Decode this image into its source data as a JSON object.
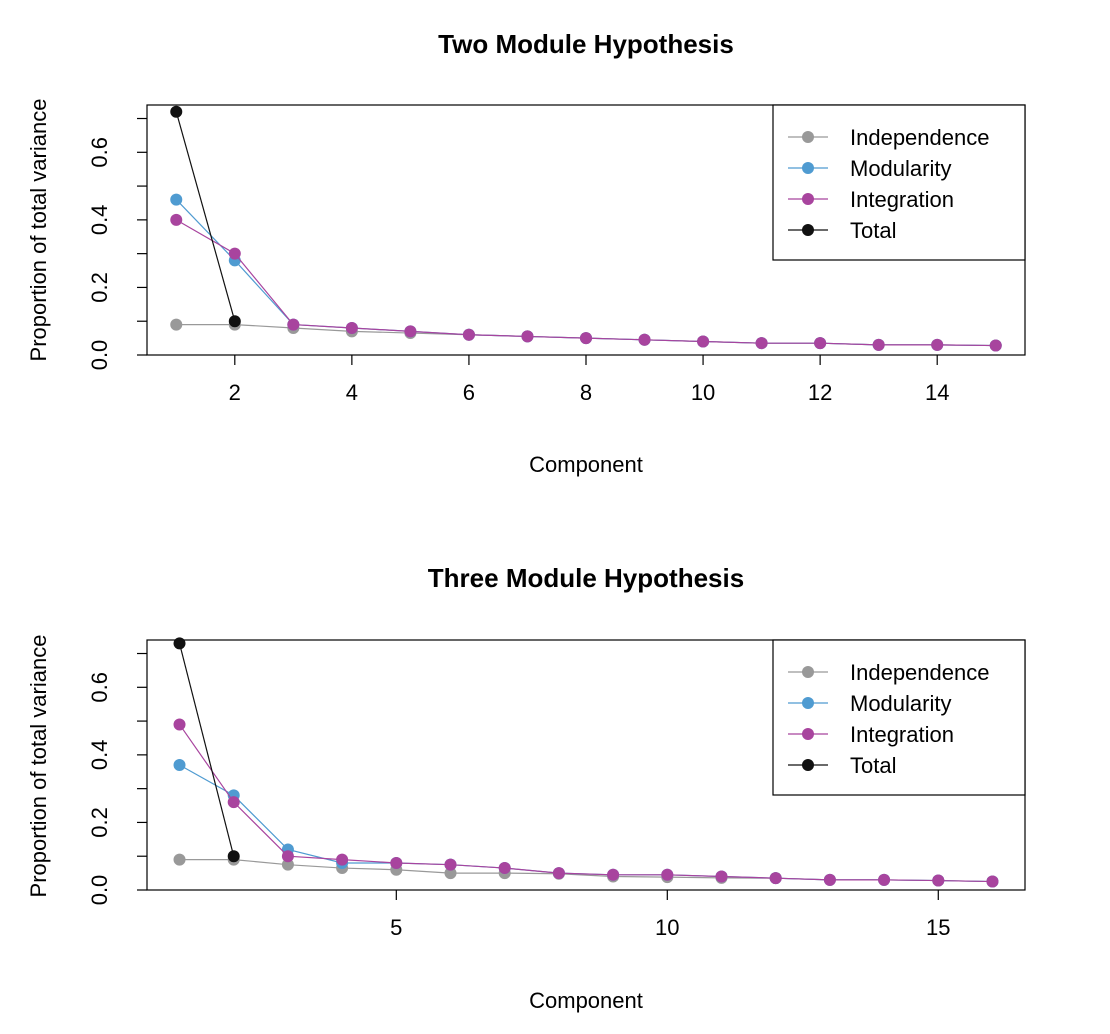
{
  "colors": {
    "Independence": "#999999",
    "Modularity": "#4f9bd1",
    "Integration": "#a8449e",
    "Total": "#111111"
  },
  "chart_data": [
    {
      "type": "line",
      "title": "Two Module Hypothesis",
      "xlabel": "Component",
      "ylabel": "Proportion of total variance",
      "xlim": [
        0.5,
        15.5
      ],
      "ylim": [
        0,
        0.74
      ],
      "xticks": [
        2,
        4,
        6,
        8,
        10,
        12,
        14
      ],
      "yticks": [
        0.0,
        0.2,
        0.4,
        0.6
      ],
      "ytick_labels": [
        "0.0",
        "0.2",
        "0.4",
        "0.6"
      ],
      "grid": false,
      "legend": "top-right",
      "series": [
        {
          "name": "Independence",
          "x": [
            1,
            2,
            3,
            4,
            5,
            6,
            7,
            8,
            9,
            10,
            11,
            12,
            13,
            14,
            15
          ],
          "y": [
            0.09,
            0.09,
            0.08,
            0.07,
            0.065,
            0.06,
            0.055,
            0.05,
            0.045,
            0.04,
            0.035,
            0.035,
            0.03,
            0.03,
            0.028
          ]
        },
        {
          "name": "Modularity",
          "x": [
            1,
            2,
            3,
            4,
            5,
            6,
            7,
            8,
            9,
            10,
            11,
            12,
            13,
            14,
            15
          ],
          "y": [
            0.46,
            0.28,
            0.09,
            0.08,
            0.07,
            0.06,
            0.055,
            0.05,
            0.045,
            0.04,
            0.035,
            0.035,
            0.03,
            0.03,
            0.028
          ]
        },
        {
          "name": "Integration",
          "x": [
            1,
            2,
            3,
            4,
            5,
            6,
            7,
            8,
            9,
            10,
            11,
            12,
            13,
            14,
            15
          ],
          "y": [
            0.4,
            0.3,
            0.09,
            0.08,
            0.07,
            0.06,
            0.055,
            0.05,
            0.045,
            0.04,
            0.035,
            0.035,
            0.03,
            0.03,
            0.028
          ]
        },
        {
          "name": "Total",
          "x": [
            1,
            2
          ],
          "y": [
            0.72,
            0.1
          ]
        }
      ]
    },
    {
      "type": "line",
      "title": "Three Module Hypothesis",
      "xlabel": "Component",
      "ylabel": "Proportion of total variance",
      "xlim": [
        0.4,
        16.6
      ],
      "ylim": [
        0,
        0.74
      ],
      "xticks": [
        5,
        10,
        15
      ],
      "yticks": [
        0.0,
        0.2,
        0.4,
        0.6
      ],
      "ytick_labels": [
        "0.0",
        "0.2",
        "0.4",
        "0.6"
      ],
      "grid": false,
      "legend": "top-right",
      "series": [
        {
          "name": "Independence",
          "x": [
            1,
            2,
            3,
            4,
            5,
            6,
            7,
            8,
            9,
            10,
            11,
            12,
            13,
            14,
            15,
            16
          ],
          "y": [
            0.09,
            0.09,
            0.075,
            0.065,
            0.06,
            0.05,
            0.05,
            0.048,
            0.04,
            0.038,
            0.036,
            0.035,
            0.03,
            0.03,
            0.028,
            0.025
          ]
        },
        {
          "name": "Modularity",
          "x": [
            1,
            2,
            3,
            4,
            5,
            6,
            7,
            8,
            9,
            10,
            11,
            12,
            13,
            14,
            15,
            16
          ],
          "y": [
            0.37,
            0.28,
            0.12,
            0.08,
            0.08,
            0.075,
            0.065,
            0.05,
            0.045,
            0.045,
            0.04,
            0.035,
            0.03,
            0.03,
            0.028,
            0.025
          ]
        },
        {
          "name": "Integration",
          "x": [
            1,
            2,
            3,
            4,
            5,
            6,
            7,
            8,
            9,
            10,
            11,
            12,
            13,
            14,
            15,
            16
          ],
          "y": [
            0.49,
            0.26,
            0.1,
            0.09,
            0.08,
            0.075,
            0.065,
            0.05,
            0.045,
            0.045,
            0.04,
            0.035,
            0.03,
            0.03,
            0.028,
            0.025
          ]
        },
        {
          "name": "Total",
          "x": [
            1,
            2
          ],
          "y": [
            0.73,
            0.1
          ]
        }
      ]
    }
  ]
}
